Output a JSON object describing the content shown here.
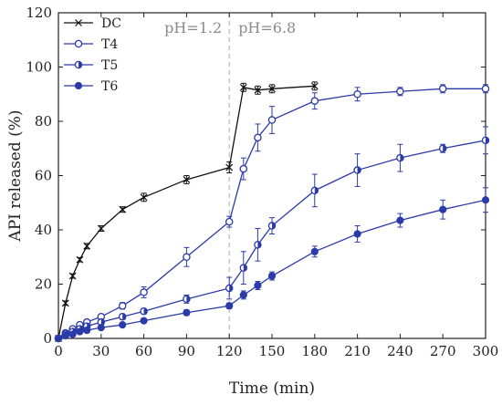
{
  "chart_data": {
    "type": "line",
    "title": "",
    "xlabel": "Time (min)",
    "ylabel": "API released (%)",
    "xlim": [
      0,
      300
    ],
    "ylim": [
      0,
      120
    ],
    "xticks": [
      0,
      30,
      60,
      90,
      120,
      150,
      180,
      210,
      240,
      270,
      300
    ],
    "yticks": [
      0,
      20,
      40,
      60,
      80,
      100,
      120
    ],
    "xtick_labels": [
      "0",
      "30",
      "60",
      "90",
      "120",
      "150",
      "180",
      "210",
      "240",
      "270",
      "300"
    ],
    "ytick_labels": [
      "0",
      "20",
      "40",
      "60",
      "80",
      "100",
      "120"
    ],
    "grid": false,
    "legend_position": "top-left",
    "annotations": [
      {
        "text": "pH=1.2",
        "x": 120
      },
      {
        "text": "pH=6.8",
        "x": 120
      }
    ],
    "phase_line_x": 120,
    "series": [
      {
        "name": "DC",
        "marker": "x",
        "color": "#111111",
        "x": [
          0,
          5,
          10,
          15,
          20,
          30,
          45,
          60,
          90,
          120,
          130,
          140,
          150,
          180
        ],
        "y": [
          0,
          13,
          23,
          29,
          34,
          40.5,
          47.5,
          52,
          58.5,
          63,
          92.5,
          91.5,
          92,
          93
        ],
        "err": [
          0,
          0.8,
          0.8,
          0.8,
          1,
          1,
          1,
          1.5,
          1.5,
          2,
          1.5,
          1.5,
          1.5,
          1.5
        ]
      },
      {
        "name": "T4",
        "marker": "open-circle",
        "color": "#2a3aa8",
        "x": [
          0,
          5,
          10,
          15,
          20,
          30,
          45,
          60,
          90,
          120,
          130,
          140,
          150,
          180,
          210,
          240,
          270,
          300
        ],
        "y": [
          0,
          2,
          3.5,
          5,
          6,
          8,
          12,
          17,
          30,
          43,
          62.5,
          74,
          80.5,
          87.5,
          90,
          91,
          92,
          92
        ],
        "err": [
          0,
          0.5,
          0.5,
          0.5,
          0.8,
          0.8,
          1.2,
          2,
          3.5,
          2,
          4,
          5,
          5,
          3,
          2.5,
          1.5,
          1.5,
          1.5
        ]
      },
      {
        "name": "T5",
        "marker": "half-filled-circle",
        "color": "#2a3aa8",
        "x": [
          0,
          5,
          10,
          15,
          20,
          30,
          45,
          60,
          90,
          120,
          130,
          140,
          150,
          180,
          210,
          240,
          270,
          300
        ],
        "y": [
          0,
          1.5,
          2.5,
          3.5,
          4.5,
          6,
          8,
          10,
          14.5,
          18.5,
          26,
          34.5,
          41.5,
          54.5,
          62,
          66.5,
          70,
          73
        ],
        "err": [
          0,
          0.4,
          0.4,
          0.5,
          0.5,
          0.8,
          1,
          1,
          1.5,
          4,
          6,
          6,
          3,
          6,
          6,
          5,
          1.5,
          5
        ]
      },
      {
        "name": "T6",
        "marker": "filled-circle",
        "color": "#2a3aa8",
        "x": [
          0,
          5,
          10,
          15,
          20,
          30,
          45,
          60,
          90,
          120,
          130,
          140,
          150,
          180,
          210,
          240,
          270,
          300
        ],
        "y": [
          0,
          1,
          1.5,
          2.5,
          3,
          4,
          5,
          6.5,
          9.5,
          12,
          16,
          19.5,
          23,
          32,
          38.5,
          43.5,
          47.5,
          51
        ],
        "err": [
          0,
          0.3,
          0.3,
          0.3,
          0.4,
          0.5,
          0.5,
          0.8,
          1,
          1,
          1.5,
          1.5,
          1.5,
          2,
          3,
          2.5,
          3.5,
          4.5
        ]
      }
    ]
  }
}
